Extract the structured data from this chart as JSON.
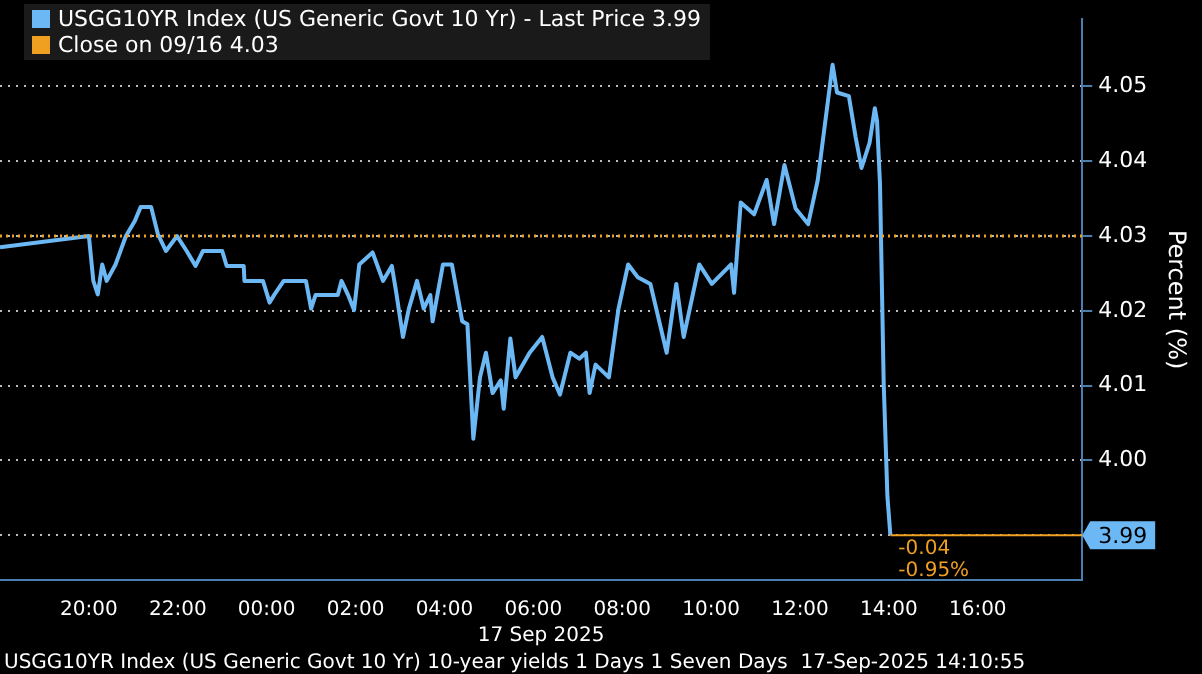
{
  "chart_data": {
    "type": "line",
    "xlabel": "17 Sep 2025",
    "ylabel": "Percent (%)",
    "x": [
      "2025-09-16T18:00",
      "2025-09-16T20:00",
      "2025-09-16T20:06",
      "2025-09-16T20:12",
      "2025-09-16T20:18",
      "2025-09-16T20:24",
      "2025-09-16T20:36",
      "2025-09-16T20:50",
      "2025-09-16T21:02",
      "2025-09-16T21:10",
      "2025-09-16T21:24",
      "2025-09-16T21:33",
      "2025-09-16T21:44",
      "2025-09-16T21:59",
      "2025-09-16T22:12",
      "2025-09-16T22:24",
      "2025-09-16T22:34",
      "2025-09-16T23:00",
      "2025-09-16T23:06",
      "2025-09-16T23:29",
      "2025-09-16T23:30",
      "2025-09-16T23:55",
      "2025-09-17T00:04",
      "2025-09-17T00:10",
      "2025-09-17T00:23",
      "2025-09-17T00:53",
      "2025-09-17T01:00",
      "2025-09-17T01:06",
      "2025-09-17T01:36",
      "2025-09-17T01:41",
      "2025-09-17T01:50",
      "2025-09-17T01:58",
      "2025-09-17T02:05",
      "2025-09-17T02:23",
      "2025-09-17T02:37",
      "2025-09-17T02:49",
      "2025-09-17T02:55",
      "2025-09-17T03:04",
      "2025-09-17T03:12",
      "2025-09-17T03:23",
      "2025-09-17T03:32",
      "2025-09-17T03:41",
      "2025-09-17T03:44",
      "2025-09-17T03:58",
      "2025-09-17T04:10",
      "2025-09-17T04:24",
      "2025-09-17T04:31",
      "2025-09-17T04:39",
      "2025-09-17T04:48",
      "2025-09-17T04:56",
      "2025-09-17T05:05",
      "2025-09-17T05:16",
      "2025-09-17T05:20",
      "2025-09-17T05:29",
      "2025-09-17T05:36",
      "2025-09-17T05:55",
      "2025-09-17T06:12",
      "2025-09-17T06:26",
      "2025-09-17T06:36",
      "2025-09-17T06:50",
      "2025-09-17T07:02",
      "2025-09-17T07:11",
      "2025-09-17T07:16",
      "2025-09-17T07:24",
      "2025-09-17T07:42",
      "2025-09-17T07:55",
      "2025-09-17T08:08",
      "2025-09-17T08:21",
      "2025-09-17T08:38",
      "2025-09-17T09:00",
      "2025-09-17T09:13",
      "2025-09-17T09:23",
      "2025-09-17T09:44",
      "2025-09-17T10:01",
      "2025-09-17T10:27",
      "2025-09-17T10:31",
      "2025-09-17T10:40",
      "2025-09-17T10:58",
      "2025-09-17T11:15",
      "2025-09-17T11:25",
      "2025-09-17T11:39",
      "2025-09-17T11:54",
      "2025-09-17T12:11",
      "2025-09-17T12:24",
      "2025-09-17T12:44",
      "2025-09-17T12:50",
      "2025-09-17T13:06",
      "2025-09-17T13:15",
      "2025-09-17T13:23",
      "2025-09-17T13:34",
      "2025-09-17T13:41",
      "2025-09-17T13:44",
      "2025-09-17T13:48",
      "2025-09-17T13:53",
      "2025-09-17T13:58",
      "2025-09-17T14:02"
    ],
    "series": [
      {
        "name": "USGG10YR Index (US Generic Govt 10 Yr) - Last Price 3.99",
        "color": "#6cb8f5",
        "values": [
          4.0285,
          4.03,
          4.024,
          4.0222,
          4.0262,
          4.024,
          4.0262,
          4.03,
          4.032,
          4.0339,
          4.0339,
          4.0303,
          4.028,
          4.03,
          4.028,
          4.026,
          4.028,
          4.028,
          4.026,
          4.026,
          4.024,
          4.024,
          4.0211,
          4.0221,
          4.024,
          4.024,
          4.0203,
          4.0221,
          4.0221,
          4.024,
          4.0221,
          4.0201,
          4.0262,
          4.0278,
          4.024,
          4.026,
          4.0224,
          4.0165,
          4.0203,
          4.024,
          4.0203,
          4.0221,
          4.0186,
          4.0262,
          4.0262,
          4.0186,
          4.0182,
          4.0029,
          4.0111,
          4.0144,
          4.009,
          4.0107,
          4.0069,
          4.0163,
          4.0111,
          4.0144,
          4.0165,
          4.0111,
          4.0088,
          4.0144,
          4.0136,
          4.0144,
          4.009,
          4.0128,
          4.0111,
          4.0203,
          4.0262,
          4.0245,
          4.0236,
          4.0144,
          4.0236,
          4.0165,
          4.0262,
          4.0236,
          4.0262,
          4.0224,
          4.0345,
          4.0329,
          4.0375,
          4.0316,
          4.0395,
          4.0337,
          4.0316,
          4.0375,
          4.0529,
          4.0492,
          4.0487,
          4.0433,
          4.0391,
          4.0425,
          4.0471,
          4.0454,
          4.037,
          4.0103,
          3.9952,
          3.99
        ],
        "value_labels": [
          null,
          null,
          null,
          null,
          null,
          null,
          null,
          null,
          null,
          null,
          null,
          null,
          null,
          null,
          null,
          null,
          null,
          null,
          null,
          null,
          null,
          null,
          null,
          null,
          null,
          null,
          null,
          null,
          null,
          null,
          null,
          null,
          null,
          null,
          null,
          null,
          null,
          null,
          null,
          null,
          null,
          null,
          null,
          null,
          null,
          null,
          null,
          null,
          null,
          null,
          null,
          null,
          null,
          null,
          null,
          null,
          null,
          null,
          null,
          null,
          null,
          null,
          null,
          null,
          null,
          null,
          null,
          null,
          null,
          null,
          null,
          null,
          null,
          null,
          null,
          null,
          null,
          null,
          null,
          null,
          null,
          null,
          null,
          null,
          null,
          null,
          null,
          null,
          null,
          null,
          null,
          null,
          null,
          null,
          null,
          "3.99"
        ]
      }
    ],
    "ref_lines": [
      {
        "axis": "y",
        "value": 4.03,
        "label": "Close on 09/16 4.03",
        "color": "#f0a020",
        "line_style": "dotted"
      }
    ],
    "xlim": [
      "2025-09-16T18:00",
      "2025-09-17T18:21"
    ],
    "xticks": [
      {
        "value": "2025-09-16T20:00",
        "label": "20:00"
      },
      {
        "value": "2025-09-16T22:00",
        "label": "22:00"
      },
      {
        "value": "2025-09-17T00:00",
        "label": "00:00"
      },
      {
        "value": "2025-09-17T02:00",
        "label": "02:00"
      },
      {
        "value": "2025-09-17T04:00",
        "label": "04:00"
      },
      {
        "value": "2025-09-17T06:00",
        "label": "06:00"
      },
      {
        "value": "2025-09-17T08:00",
        "label": "08:00"
      },
      {
        "value": "2025-09-17T10:00",
        "label": "10:00"
      },
      {
        "value": "2025-09-17T12:00",
        "label": "12:00"
      },
      {
        "value": "2025-09-17T14:00",
        "label": "14:00"
      },
      {
        "value": "2025-09-17T16:00",
        "label": "16:00"
      }
    ],
    "ylim": [
      3.984,
      4.059
    ],
    "yticks": [
      {
        "value": 3.99,
        "label": "3.99"
      },
      {
        "value": 4,
        "label": "4.00"
      },
      {
        "value": 4.01,
        "label": "4.01"
      },
      {
        "value": 4.02,
        "label": "4.02"
      },
      {
        "value": 4.03,
        "label": "4.03"
      },
      {
        "value": 4.04,
        "label": "4.04"
      },
      {
        "value": 4.05,
        "label": "4.05"
      }
    ],
    "grid": "y",
    "legend": "top left",
    "marker": "none",
    "line_style": "solid",
    "annotations": [
      "USGG10YR Index (US Generic Govt 10 Yr) 10-year yields 1 Days 1 Seven Days  17-Sep-2025 14:10:55",
      {
        "text": "-0.04",
        "x": "2025-09-17T14:02",
        "y": 3.99
      },
      {
        "text": "-0.95%",
        "x": "2025-09-17T14:02",
        "y": 3.99
      }
    ]
  }
}
